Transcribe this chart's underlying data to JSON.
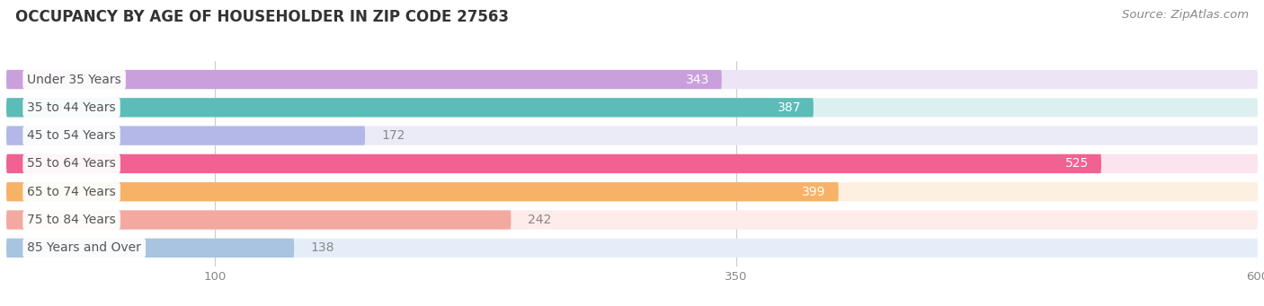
{
  "title": "OCCUPANCY BY AGE OF HOUSEHOLDER IN ZIP CODE 27563",
  "source": "Source: ZipAtlas.com",
  "categories": [
    "Under 35 Years",
    "35 to 44 Years",
    "45 to 54 Years",
    "55 to 64 Years",
    "65 to 74 Years",
    "75 to 84 Years",
    "85 Years and Over"
  ],
  "values": [
    343,
    387,
    172,
    525,
    399,
    242,
    138
  ],
  "bar_colors": [
    "#c9a0dc",
    "#5bbcb8",
    "#b4b8e8",
    "#f06292",
    "#f7b267",
    "#f4a9a0",
    "#a8c4e0"
  ],
  "bar_bg_colors": [
    "#ede4f5",
    "#ddf0f0",
    "#ebebf8",
    "#fce4ef",
    "#fdf0e0",
    "#fdecea",
    "#e5eef8"
  ],
  "xlim_min": 0,
  "xlim_max": 600,
  "xticks": [
    100,
    350,
    600
  ],
  "title_fontsize": 12,
  "source_fontsize": 9.5,
  "label_fontsize": 10,
  "value_fontsize": 10,
  "background_color": "#ffffff",
  "bar_height": 0.68,
  "value_threshold": 300
}
